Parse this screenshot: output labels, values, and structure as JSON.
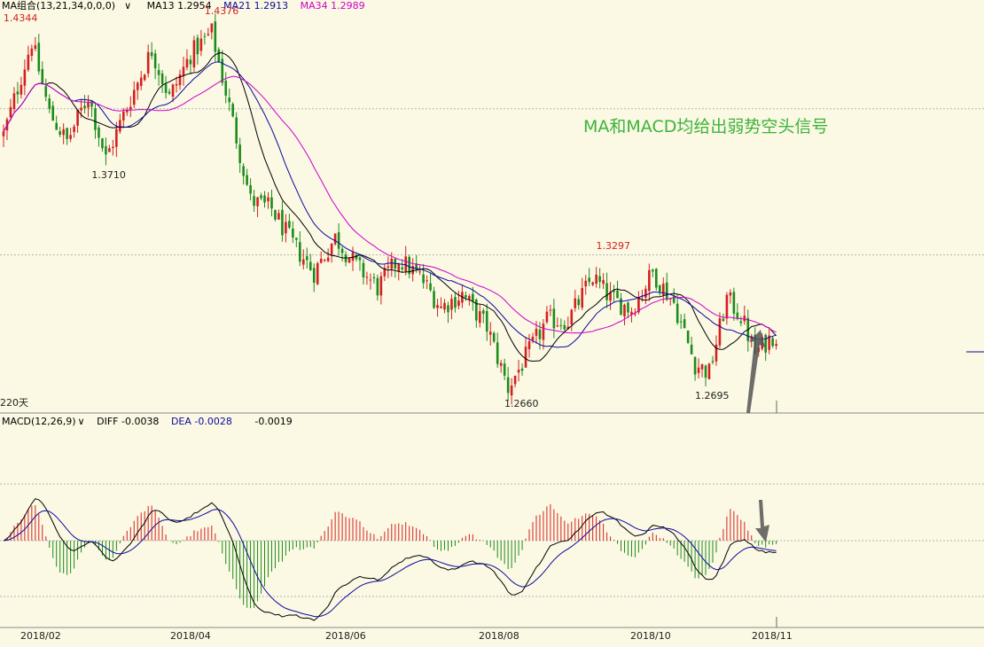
{
  "main_legend": {
    "indicator": "MA组合(13,21,34,0,0,0)",
    "ma13": "MA13 1.2954",
    "ma21": "MA21 1.2913",
    "ma34": "MA34 1.2989"
  },
  "period_label": "220天",
  "annotation": "MA和MACD均给出弱势空头信号",
  "macd_legend": {
    "indicator": "MACD(12,26,9)",
    "diff": "DIFF -0.0038",
    "dea": "DEA -0.0028",
    "hist": "-0.0019"
  },
  "colors": {
    "background": "#fbf8e3",
    "up": "#d42020",
    "down": "#1c8c1c",
    "ma13": "#000000",
    "ma21": "#0a0a9e",
    "ma34": "#cc00cc",
    "annotation": "#3cb43c",
    "arrow": "#555555"
  },
  "chart_data": [
    {
      "type": "candlestick",
      "name": "price",
      "series": [
        {
          "name": "MA13",
          "value": 1.2954
        },
        {
          "name": "MA21",
          "value": 1.2913
        },
        {
          "name": "MA34",
          "value": 1.2989
        }
      ],
      "ylim": [
        1.264,
        1.442
      ],
      "x_ticks": [
        "2018/02",
        "2018/04",
        "2018/06",
        "2018/08",
        "2018/10",
        "2018/11"
      ],
      "anchors": [
        {
          "day": 0,
          "price": 1.385
        },
        {
          "day": 8,
          "price": 1.428
        },
        {
          "day": 13,
          "price": 1.395
        },
        {
          "day": 18,
          "price": 1.382
        },
        {
          "day": 24,
          "price": 1.403
        },
        {
          "day": 29,
          "price": 1.374
        },
        {
          "day": 35,
          "price": 1.398
        },
        {
          "day": 42,
          "price": 1.424
        },
        {
          "day": 47,
          "price": 1.402
        },
        {
          "day": 53,
          "price": 1.422
        },
        {
          "day": 59,
          "price": 1.432
        },
        {
          "day": 64,
          "price": 1.398
        },
        {
          "day": 70,
          "price": 1.355
        },
        {
          "day": 76,
          "price": 1.351
        },
        {
          "day": 82,
          "price": 1.335
        },
        {
          "day": 88,
          "price": 1.322
        },
        {
          "day": 94,
          "price": 1.338
        },
        {
          "day": 100,
          "price": 1.325
        },
        {
          "day": 106,
          "price": 1.315
        },
        {
          "day": 112,
          "price": 1.328
        },
        {
          "day": 118,
          "price": 1.32
        },
        {
          "day": 124,
          "price": 1.306
        },
        {
          "day": 130,
          "price": 1.312
        },
        {
          "day": 137,
          "price": 1.297
        },
        {
          "day": 143,
          "price": 1.269
        },
        {
          "day": 148,
          "price": 1.283
        },
        {
          "day": 154,
          "price": 1.3
        },
        {
          "day": 160,
          "price": 1.3
        },
        {
          "day": 167,
          "price": 1.32
        },
        {
          "day": 172,
          "price": 1.31
        },
        {
          "day": 178,
          "price": 1.305
        },
        {
          "day": 184,
          "price": 1.322
        },
        {
          "day": 190,
          "price": 1.308
        },
        {
          "day": 196,
          "price": 1.28
        },
        {
          "day": 200,
          "price": 1.276
        },
        {
          "day": 205,
          "price": 1.31
        },
        {
          "day": 209,
          "price": 1.302
        },
        {
          "day": 213,
          "price": 1.285
        },
        {
          "day": 218,
          "price": 1.293
        }
      ],
      "labels": [
        {
          "text": "1.4344",
          "day": 5,
          "price": 1.4344,
          "color": "#d42020",
          "pos": "above"
        },
        {
          "text": "1.4376",
          "day": 62,
          "price": 1.4376,
          "color": "#d42020",
          "pos": "above"
        },
        {
          "text": "1.3710",
          "day": 30,
          "price": 1.371,
          "color": "#222222",
          "pos": "below"
        },
        {
          "text": "1.2660",
          "day": 147,
          "price": 1.266,
          "color": "#222222",
          "pos": "below"
        },
        {
          "text": "1.3297",
          "day": 173,
          "price": 1.3297,
          "color": "#d42020",
          "pos": "above"
        },
        {
          "text": "1.2695",
          "day": 201,
          "price": 1.2695,
          "color": "#222222",
          "pos": "below"
        }
      ]
    },
    {
      "type": "macd",
      "name": "MACD(12,26,9)",
      "series": [
        {
          "name": "DIFF",
          "value": -0.0038
        },
        {
          "name": "DEA",
          "value": -0.0028
        },
        {
          "name": "MACD",
          "value": -0.0019
        }
      ]
    }
  ]
}
